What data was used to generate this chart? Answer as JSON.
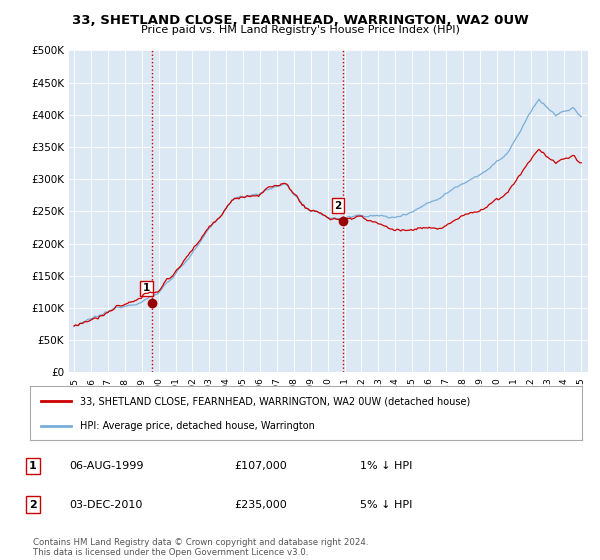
{
  "title": "33, SHETLAND CLOSE, FEARNHEAD, WARRINGTON, WA2 0UW",
  "subtitle": "Price paid vs. HM Land Registry's House Price Index (HPI)",
  "ylim": [
    0,
    500000
  ],
  "yticks": [
    0,
    50000,
    100000,
    150000,
    200000,
    250000,
    300000,
    350000,
    400000,
    450000,
    500000
  ],
  "sale1": {
    "date_idx": 1999.59,
    "price": 107000,
    "label": "1"
  },
  "sale2": {
    "date_idx": 2010.92,
    "price": 235000,
    "label": "2"
  },
  "legend_line1": "33, SHETLAND CLOSE, FEARNHEAD, WARRINGTON, WA2 0UW (detached house)",
  "legend_line2": "HPI: Average price, detached house, Warrington",
  "table_row1": [
    "1",
    "06-AUG-1999",
    "£107,000",
    "1% ↓ HPI"
  ],
  "table_row2": [
    "2",
    "03-DEC-2010",
    "£235,000",
    "5% ↓ HPI"
  ],
  "footer": "Contains HM Land Registry data © Crown copyright and database right 2024.\nThis data is licensed under the Open Government Licence v3.0.",
  "hpi_color": "#7aaed6",
  "price_color": "#cc0000",
  "sale_marker_color": "#990000",
  "vline_color": "#cc0000",
  "plot_bg_color": "#dce9f5",
  "fig_bg_color": "#ffffff",
  "grid_color": "#ffffff"
}
